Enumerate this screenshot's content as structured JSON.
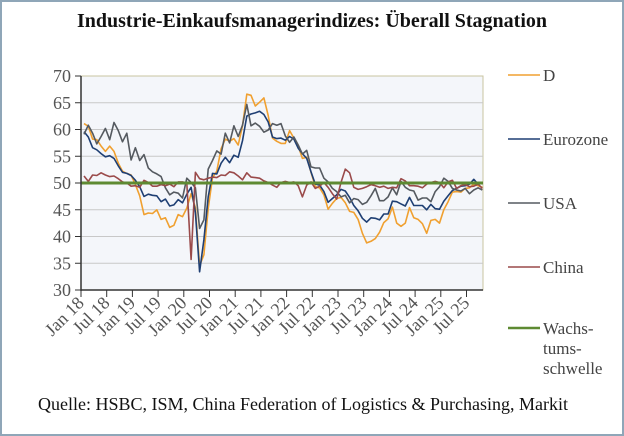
{
  "title": "Industrie-Einkaufsmanagerindizes: Überall Stagnation",
  "source": "Quelle: HSBC, ISM, China Federation of Logistics & Purchasing, Markit",
  "chart_data": {
    "type": "line",
    "title": "Industrie-Einkaufsmanagerindizes: Überall Stagnation",
    "xlabel": "",
    "ylabel": "",
    "ylim": [
      30,
      70
    ],
    "yticks": [
      "30",
      "35",
      "40",
      "45",
      "50",
      "55",
      "60",
      "65",
      "70"
    ],
    "xticks": [
      "Jan 18",
      "Jul 18",
      "Jan 19",
      "Jul 19",
      "Jan 20",
      "Jul 20",
      "Jan 21",
      "Jul 21",
      "Jan 22",
      "Jul 22",
      "Jan 23",
      "Jul 23",
      "Jan 24",
      "Jul 24",
      "Jan 25",
      "Jul 25"
    ],
    "x_start": "2018-01",
    "frequency": "monthly",
    "grid": true,
    "legend_position": "right",
    "series": [
      {
        "name": "D",
        "color": "#f0a030",
        "values": [
          61.1,
          60.6,
          58.2,
          58.1,
          56.9,
          55.9,
          56.9,
          55.9,
          53.7,
          52.2,
          51.8,
          51.5,
          49.7,
          47.6,
          44.1,
          44.4,
          44.3,
          45.0,
          43.2,
          43.5,
          41.7,
          42.1,
          44.1,
          43.7,
          45.3,
          48.0,
          45.4,
          34.5,
          36.6,
          45.2,
          51.0,
          52.2,
          56.4,
          58.2,
          57.8,
          58.3,
          57.1,
          60.7,
          66.6,
          66.4,
          64.4,
          65.1,
          65.9,
          62.6,
          58.4,
          57.8,
          57.4,
          57.4,
          59.8,
          58.4,
          56.9,
          54.6,
          54.8,
          52.0,
          49.3,
          49.1,
          47.8,
          45.1,
          46.2,
          47.1,
          47.3,
          46.3,
          44.7,
          44.5,
          43.2,
          40.6,
          38.8,
          39.1,
          39.6,
          40.8,
          42.6,
          43.3,
          45.5,
          42.5,
          41.9,
          42.5,
          45.4,
          43.5,
          43.2,
          42.4,
          40.6,
          43.0,
          43.2,
          42.5,
          45.0,
          46.5,
          48.3,
          48.4,
          48.3,
          49.0,
          49.1,
          49.8,
          49.5,
          49.2
        ]
      },
      {
        "name": "Eurozone",
        "color": "#1f3f73",
        "values": [
          59.6,
          58.6,
          56.6,
          56.2,
          55.5,
          54.9,
          55.1,
          54.6,
          53.2,
          52.0,
          51.8,
          51.4,
          50.5,
          49.3,
          47.5,
          47.9,
          47.7,
          47.6,
          46.5,
          47.0,
          45.7,
          45.9,
          46.9,
          46.3,
          47.9,
          49.2,
          44.5,
          33.4,
          39.4,
          47.4,
          51.8,
          51.7,
          53.7,
          54.8,
          53.8,
          55.2,
          54.8,
          57.9,
          62.5,
          62.9,
          63.1,
          63.4,
          62.8,
          61.4,
          58.6,
          58.3,
          58.4,
          58.0,
          58.7,
          58.2,
          56.5,
          55.5,
          54.6,
          52.1,
          49.8,
          49.6,
          48.4,
          46.4,
          47.1,
          47.8,
          48.8,
          48.5,
          47.3,
          45.8,
          44.8,
          43.4,
          42.7,
          43.5,
          43.4,
          43.1,
          44.2,
          44.2,
          46.6,
          46.5,
          46.1,
          45.7,
          47.3,
          45.8,
          45.8,
          45.8,
          45.0,
          46.0,
          45.2,
          45.1,
          46.6,
          47.6,
          48.6,
          49.0,
          49.4,
          49.5,
          49.8,
          50.7,
          49.8,
          50.0
        ]
      },
      {
        "name": "USA",
        "color": "#555a60",
        "values": [
          59.1,
          60.8,
          59.3,
          57.3,
          58.7,
          60.2,
          58.1,
          61.3,
          59.8,
          57.7,
          59.3,
          54.3,
          56.6,
          54.2,
          55.3,
          52.8,
          52.1,
          51.7,
          51.2,
          49.1,
          47.8,
          48.3,
          48.1,
          47.2,
          50.9,
          50.1,
          49.1,
          41.5,
          43.1,
          52.6,
          54.2,
          56.0,
          55.4,
          59.3,
          57.5,
          60.7,
          58.7,
          60.8,
          64.7,
          60.7,
          61.2,
          60.6,
          59.5,
          59.9,
          61.1,
          60.8,
          61.1,
          58.8,
          57.6,
          58.6,
          57.1,
          55.4,
          56.1,
          53.0,
          52.8,
          52.8,
          50.9,
          50.2,
          49.0,
          48.4,
          47.4,
          47.7,
          46.3,
          47.1,
          46.9,
          46.0,
          46.4,
          47.6,
          49.0,
          46.7,
          46.7,
          47.4,
          49.1,
          47.8,
          50.3,
          49.2,
          48.7,
          48.5,
          46.8,
          47.2,
          47.2,
          46.5,
          48.4,
          49.3,
          50.9,
          50.3,
          49.0,
          48.7,
          48.5,
          49.0,
          48.0,
          48.7,
          49.1,
          48.7
        ]
      },
      {
        "name": "China",
        "color": "#9a4a4a",
        "values": [
          51.3,
          50.3,
          51.5,
          51.4,
          51.9,
          51.5,
          51.2,
          51.3,
          50.8,
          50.2,
          50.0,
          49.4,
          49.5,
          49.2,
          50.5,
          50.1,
          49.4,
          49.4,
          49.7,
          49.5,
          49.8,
          49.3,
          50.2,
          50.2,
          50.0,
          35.7,
          52.0,
          50.8,
          50.6,
          50.9,
          51.1,
          51.0,
          51.5,
          51.4,
          52.1,
          51.9,
          51.3,
          50.6,
          51.9,
          51.1,
          51.0,
          50.9,
          50.4,
          50.1,
          49.6,
          49.2,
          50.1,
          50.3,
          50.1,
          50.2,
          49.5,
          47.4,
          49.6,
          50.2,
          49.0,
          49.4,
          50.1,
          49.2,
          48.0,
          47.0,
          50.1,
          52.6,
          51.9,
          49.2,
          48.8,
          49.0,
          49.3,
          49.7,
          49.5,
          49.2,
          49.4,
          49.0,
          49.2,
          49.1,
          50.8,
          50.4,
          49.5,
          49.5,
          49.4,
          49.1,
          49.8,
          50.1,
          50.3,
          50.1,
          49.1,
          50.2,
          50.5,
          49.0,
          49.5,
          49.7,
          49.3,
          49.4,
          49.8,
          49.0
        ]
      },
      {
        "name": "Wachstumsschwelle",
        "legend_label": [
          "Wachs-",
          "tums-",
          "schwelle"
        ],
        "color": "#5e8a32",
        "constant": 50
      }
    ]
  }
}
